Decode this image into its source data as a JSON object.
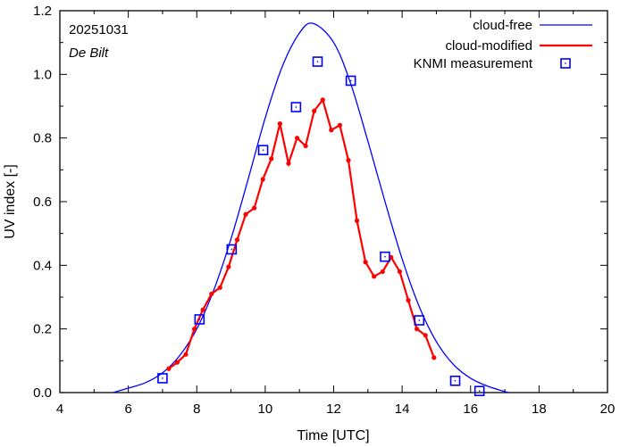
{
  "chart_data": {
    "type": "line",
    "xlabel": "Time  [UTC]",
    "ylabel": "UV index  [-]",
    "xlim": [
      4,
      20
    ],
    "ylim": [
      0,
      1.2
    ],
    "xticks": [
      4,
      6,
      8,
      10,
      12,
      14,
      16,
      18,
      20
    ],
    "xtick_labels": [
      "4",
      "6",
      "8",
      "10",
      "12",
      "14",
      "16",
      "18",
      "20"
    ],
    "yticks": [
      0,
      0.2,
      0.4,
      0.6,
      0.8,
      1.0,
      1.2
    ],
    "ytick_labels": [
      "0.0",
      "0.2",
      "0.4",
      "0.6",
      "0.8",
      "1.0",
      "1.2"
    ],
    "grid": false,
    "legend_position": "top-right",
    "annotations": [
      "20251031",
      "De Bilt"
    ],
    "series": [
      {
        "name": "cloud-free",
        "color": "#0000ff",
        "style": "line",
        "x": [
          5.55,
          6.0,
          6.5,
          7.0,
          7.5,
          8.0,
          8.5,
          9.0,
          9.5,
          10.0,
          10.5,
          11.0,
          11.4,
          12.0,
          12.5,
          13.0,
          13.5,
          14.0,
          14.5,
          15.0,
          15.5,
          16.0,
          16.5,
          17.1
        ],
        "y": [
          0.0,
          0.014,
          0.031,
          0.062,
          0.116,
          0.2,
          0.323,
          0.483,
          0.67,
          0.863,
          1.025,
          1.13,
          1.16,
          1.1,
          0.97,
          0.79,
          0.6,
          0.42,
          0.27,
          0.16,
          0.088,
          0.045,
          0.02,
          0.0
        ]
      },
      {
        "name": "cloud-modified",
        "color": "#ff0000",
        "style": "line-points",
        "x": [
          7.18,
          7.43,
          7.68,
          7.93,
          8.18,
          8.43,
          8.68,
          8.93,
          9.18,
          9.43,
          9.68,
          9.93,
          10.18,
          10.43,
          10.68,
          10.93,
          11.18,
          11.43,
          11.68,
          11.93,
          12.18,
          12.43,
          12.68,
          12.93,
          13.18,
          13.43,
          13.68,
          13.93,
          14.18,
          14.43,
          14.68,
          14.93
        ],
        "y": [
          0.075,
          0.095,
          0.12,
          0.2,
          0.26,
          0.31,
          0.33,
          0.395,
          0.48,
          0.56,
          0.58,
          0.67,
          0.735,
          0.845,
          0.72,
          0.8,
          0.775,
          0.885,
          0.92,
          0.825,
          0.84,
          0.73,
          0.54,
          0.41,
          0.365,
          0.38,
          0.425,
          0.38,
          0.29,
          0.2,
          0.18,
          0.11
        ]
      },
      {
        "name": "KNMI measurement",
        "color": "#0000ff",
        "style": "square-markers",
        "x": [
          7.0,
          8.08,
          9.02,
          9.94,
          10.9,
          11.53,
          12.5,
          13.5,
          14.5,
          15.55,
          16.26
        ],
        "y": [
          0.045,
          0.23,
          0.45,
          0.762,
          0.897,
          1.04,
          0.98,
          0.427,
          0.227,
          0.037,
          0.005
        ]
      }
    ]
  }
}
